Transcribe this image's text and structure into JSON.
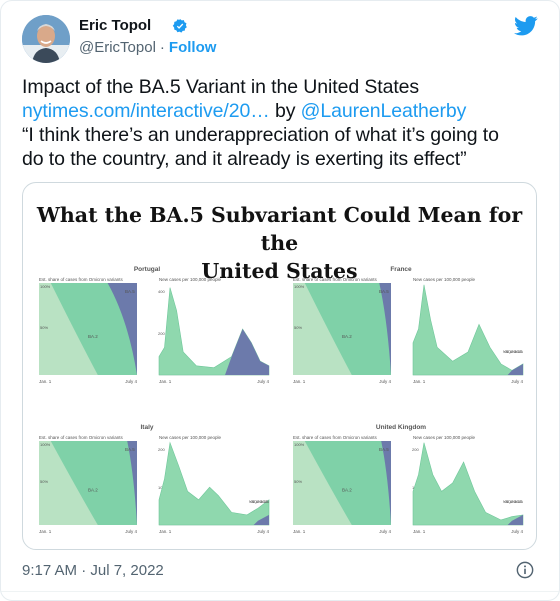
{
  "author": {
    "name": "Eric Topol",
    "handle": "@EricTopol",
    "separator": "·",
    "follow_label": "Follow",
    "verified_icon": "verified-badge-icon",
    "avatar_icon": "avatar"
  },
  "brand_icon": "twitter-bird-icon",
  "tweet": {
    "line1": "Impact of the BA.5 Variant in the United States",
    "link1": "nytimes.com/interactive/20…",
    "by_text": " by ",
    "mention": "@LaurenLeatherby",
    "quote_line1": "“I think there’s an underappreciation of what it’s going to",
    "quote_line2": "do to the country, and it already is exerting its effect”"
  },
  "media": {
    "title_line1": "What the BA.5 Subvariant Could Mean for the",
    "title_line2": "United States",
    "panels": [
      {
        "country": "Portugal",
        "share_label": "Est. share of cases from Omicron variants",
        "cases_label": "New cases per 100,000 people",
        "y_top": "100%",
        "y_mid": "50%",
        "cases_top": "400",
        "cases_mid": "200",
        "start": "Jan. 1",
        "end": "July 4",
        "ba5": "BA.5",
        "ba2": "BA.2",
        "no_seq": ""
      },
      {
        "country": "France",
        "share_label": "Est. share of cases from Omicron variants",
        "cases_label": "New cases per 100,000 people",
        "y_top": "100%",
        "y_mid": "50%",
        "cases_top": "",
        "cases_mid": "",
        "start": "Jan. 1",
        "end": "July 4",
        "ba5": "BA.5",
        "ba2": "BA.2",
        "no_seq": "NO SEQUENCING DATA"
      },
      {
        "country": "Italy",
        "share_label": "Est. share of cases from Omicron variants",
        "cases_label": "New cases per 100,000 people",
        "y_top": "100%",
        "y_mid": "50%",
        "cases_top": "200",
        "cases_mid": "100",
        "start": "Jan. 1",
        "end": "July 4",
        "ba5": "BA.5",
        "ba2": "BA.2",
        "no_seq": "NO SEQUENCING DATA"
      },
      {
        "country": "United Kingdom",
        "share_label": "Est. share of cases from Omicron variants",
        "cases_label": "New cases per 100,000 people",
        "y_top": "100%",
        "y_mid": "50%",
        "cases_top": "200",
        "cases_mid": "100",
        "start": "Jan. 1",
        "end": "July 4",
        "ba5": "BA.5",
        "ba2": "BA.2",
        "no_seq": "NO SEQUENCING DATA"
      }
    ]
  },
  "timestamp": "9:17 AM · Jul 7, 2022",
  "info_icon": "info-icon",
  "colors": {
    "link": "#1d9bf0",
    "ba1": "#b9e2c3",
    "ba2": "#7fd1a8",
    "ba5": "#6c7aab",
    "cases_area": "#8fd8ae"
  }
}
